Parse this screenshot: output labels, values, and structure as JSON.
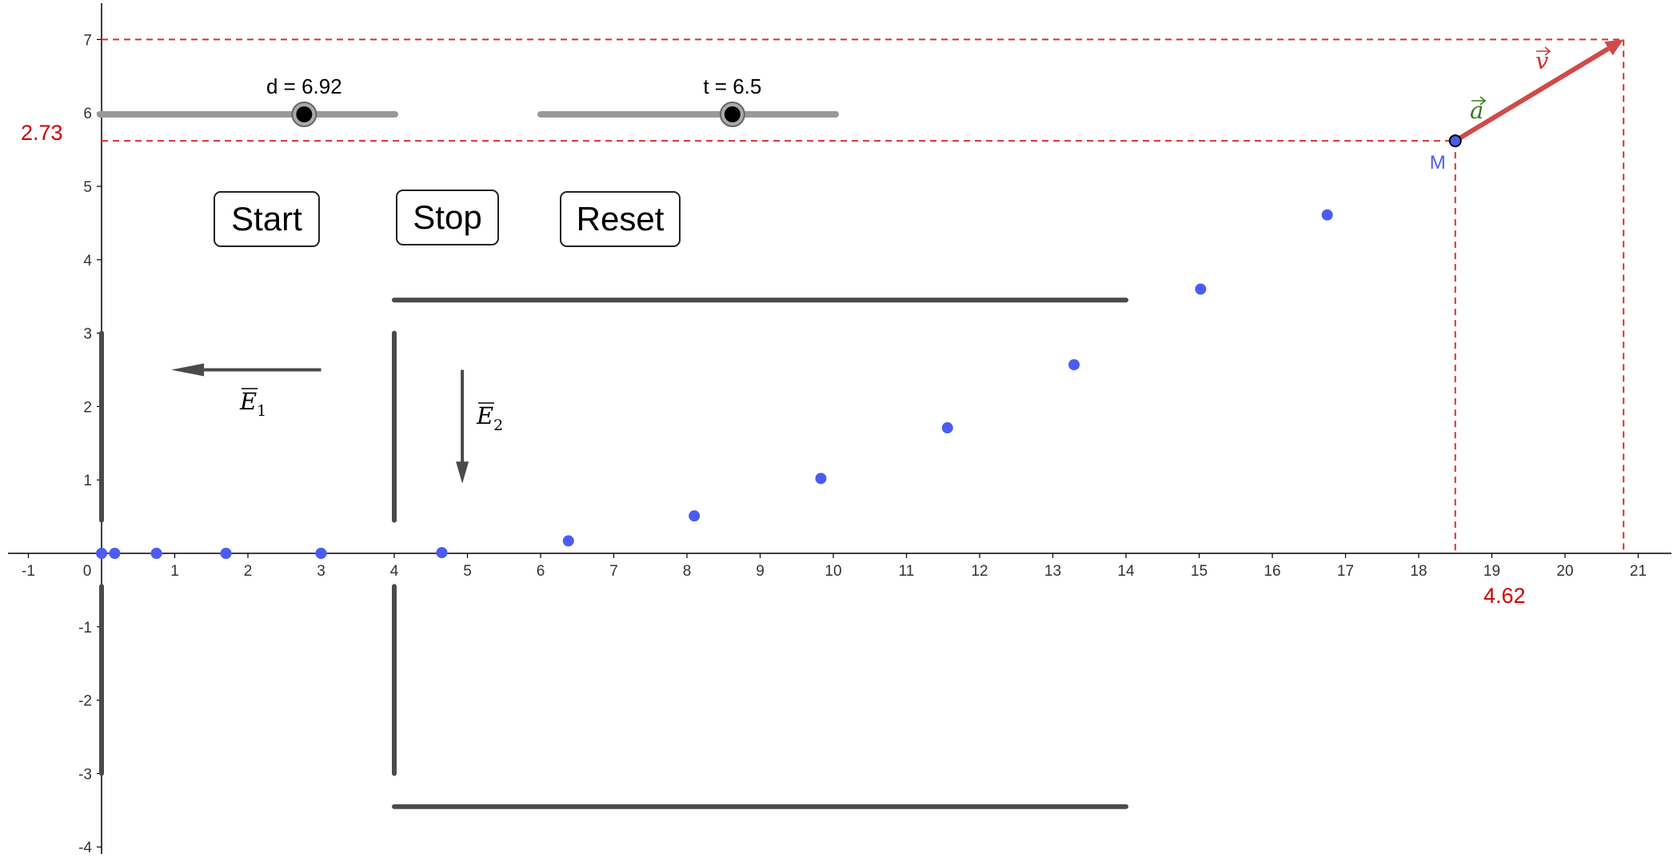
{
  "axes": {
    "x_range": [
      -1.25,
      21.7
    ],
    "y_range": [
      -4.15,
      7.5
    ],
    "x_ticks": [
      "-1",
      "0",
      "1",
      "2",
      "3",
      "4",
      "5",
      "6",
      "7",
      "8",
      "9",
      "10",
      "11",
      "12",
      "13",
      "14",
      "15",
      "16",
      "17",
      "18",
      "19",
      "20",
      "21"
    ],
    "y_ticks": [
      "-4",
      "-3",
      "-2",
      "-1",
      "1",
      "2",
      "3",
      "4",
      "5",
      "6",
      "7"
    ],
    "grid": false
  },
  "colors": {
    "axis": "#000000",
    "plates": "#4a4a4a",
    "points": "#4a5cf5",
    "accent_red": "#d14a4a",
    "dashed_red": "#d93030",
    "accel_green": "#3a7a1a",
    "slider_track": "#999999"
  },
  "sliders": {
    "d": {
      "label": "d = 6.92",
      "value": 6.92
    },
    "t": {
      "label": "t = 6.5",
      "value": 6.5
    }
  },
  "buttons": {
    "start": "Start",
    "stop": "Stop",
    "reset": "Reset"
  },
  "fields": {
    "e1": {
      "name": "E",
      "sub": "1",
      "direction": "-x"
    },
    "e2": {
      "name": "E",
      "sub": "2",
      "direction": "-y"
    }
  },
  "vectors": {
    "v": {
      "label": "v",
      "from": [
        18.5,
        5.62
      ],
      "to": [
        20.8,
        7.0
      ]
    },
    "a": {
      "label": "a"
    }
  },
  "point_m": {
    "label": "M",
    "x": 18.5,
    "y": 5.62
  },
  "readouts": {
    "y_value": "2.73",
    "x_value": "4.62"
  },
  "trajectory": [
    [
      0,
      0
    ],
    [
      0.18,
      0
    ],
    [
      0.75,
      0
    ],
    [
      1.7,
      0
    ],
    [
      3.0,
      0
    ],
    [
      4.65,
      0.01
    ],
    [
      6.38,
      0.17
    ],
    [
      8.1,
      0.51
    ],
    [
      9.83,
      1.02
    ],
    [
      11.56,
      1.71
    ],
    [
      13.29,
      2.57
    ],
    [
      15.02,
      3.6
    ],
    [
      16.75,
      4.61
    ]
  ],
  "plates": [
    [
      [
        0,
        0.45
      ],
      [
        0,
        3.0
      ]
    ],
    [
      [
        0,
        -0.45
      ],
      [
        0,
        -3.0
      ]
    ],
    [
      [
        4,
        0.45
      ],
      [
        4,
        3.0
      ]
    ],
    [
      [
        4,
        -0.45
      ],
      [
        4,
        -3.0
      ]
    ],
    [
      [
        4,
        3.45
      ],
      [
        14,
        3.45
      ]
    ],
    [
      [
        4,
        -3.45
      ],
      [
        14,
        -3.45
      ]
    ]
  ]
}
